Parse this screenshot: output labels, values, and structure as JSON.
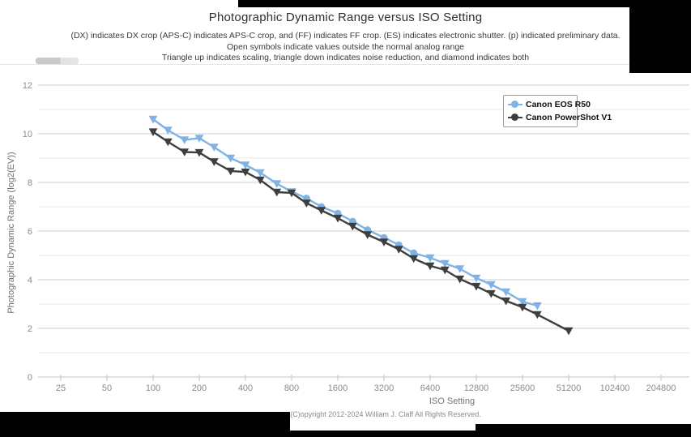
{
  "page": {
    "subtitle_lines": [
      "(DX) indicates DX crop (APS-C) indicates APS-C crop, and (FF) indicates FF crop. (ES) indicates electronic shutter. (p) indicated preliminary data.",
      "Open symbols indicate values outside the normal analog range",
      "Triangle up indicates scaling, triangle down indicates noise reduction, and diamond indicates both"
    ],
    "copyright": "(C)opyright 2012-2024 William J. Claff All Rights Reserved."
  },
  "colors": {
    "series_blue": "#7FB2E5",
    "series_dark": "#3E3E3E",
    "grid_major": "#cdcdcd",
    "grid_minor": "#e8e8e8",
    "axis_line": "#c6c6c6",
    "tick_text": "#8b8b8b",
    "decor_black": "#000000"
  },
  "chart_data": {
    "type": "line",
    "title": "Photographic Dynamic Range versus ISO Setting",
    "xlabel": "ISO Setting",
    "ylabel": "Photographic Dynamic Range (log2(EV))",
    "x_scale": "log2",
    "grid": "horizontal",
    "legend_position": "top-right",
    "ylim": [
      0,
      12
    ],
    "x_ticks": [
      25,
      50,
      100,
      200,
      400,
      800,
      1600,
      3200,
      6400,
      12800,
      25600,
      51200,
      102400,
      204800
    ],
    "y_ticks": [
      0,
      2,
      4,
      6,
      8,
      10,
      12
    ],
    "y_minor_ticks": [
      1,
      3,
      5,
      7,
      9,
      11
    ],
    "series": [
      {
        "name": "Canon EOS R50",
        "color": "#7FB2E5",
        "x": [
          100,
          125,
          160,
          200,
          250,
          320,
          400,
          500,
          640,
          800,
          1000,
          1250,
          1600,
          2000,
          2500,
          3200,
          4000,
          5000,
          6400,
          8000,
          10000,
          12800,
          16000,
          20000,
          25600,
          32000
        ],
        "y": [
          10.6,
          10.15,
          9.75,
          9.82,
          9.45,
          9.0,
          8.72,
          8.4,
          7.95,
          7.62,
          7.35,
          7.0,
          6.73,
          6.4,
          6.05,
          5.73,
          5.43,
          5.1,
          4.9,
          4.67,
          4.45,
          4.07,
          3.8,
          3.5,
          3.1,
          2.93
        ],
        "markers": [
          "t",
          "t",
          "t",
          "t",
          "t",
          "t",
          "t",
          "t",
          "t",
          "t",
          "c",
          "c",
          "c",
          "c",
          "c",
          "c",
          "c",
          "c",
          "t",
          "t",
          "t",
          "t",
          "t",
          "t",
          "t",
          "t"
        ]
      },
      {
        "name": "Canon PowerShot V1",
        "color": "#3E3E3E",
        "x": [
          100,
          125,
          160,
          200,
          250,
          320,
          400,
          500,
          640,
          800,
          1000,
          1250,
          1600,
          2000,
          2500,
          3200,
          4000,
          5000,
          6400,
          8000,
          10000,
          12800,
          16000,
          20000,
          25600,
          32000,
          51200
        ],
        "y": [
          10.08,
          9.67,
          9.25,
          9.23,
          8.85,
          8.47,
          8.43,
          8.1,
          7.6,
          7.57,
          7.15,
          6.85,
          6.53,
          6.2,
          5.85,
          5.55,
          5.25,
          4.87,
          4.57,
          4.4,
          4.03,
          3.73,
          3.43,
          3.13,
          2.87,
          2.57,
          1.9
        ],
        "markers": [
          "t",
          "t",
          "t",
          "t",
          "t",
          "t",
          "t",
          "t",
          "t",
          "t",
          "t",
          "t",
          "t",
          "t",
          "t",
          "t",
          "t",
          "t",
          "t",
          "t",
          "t",
          "t",
          "t",
          "t",
          "t",
          "t",
          "t"
        ]
      }
    ]
  }
}
